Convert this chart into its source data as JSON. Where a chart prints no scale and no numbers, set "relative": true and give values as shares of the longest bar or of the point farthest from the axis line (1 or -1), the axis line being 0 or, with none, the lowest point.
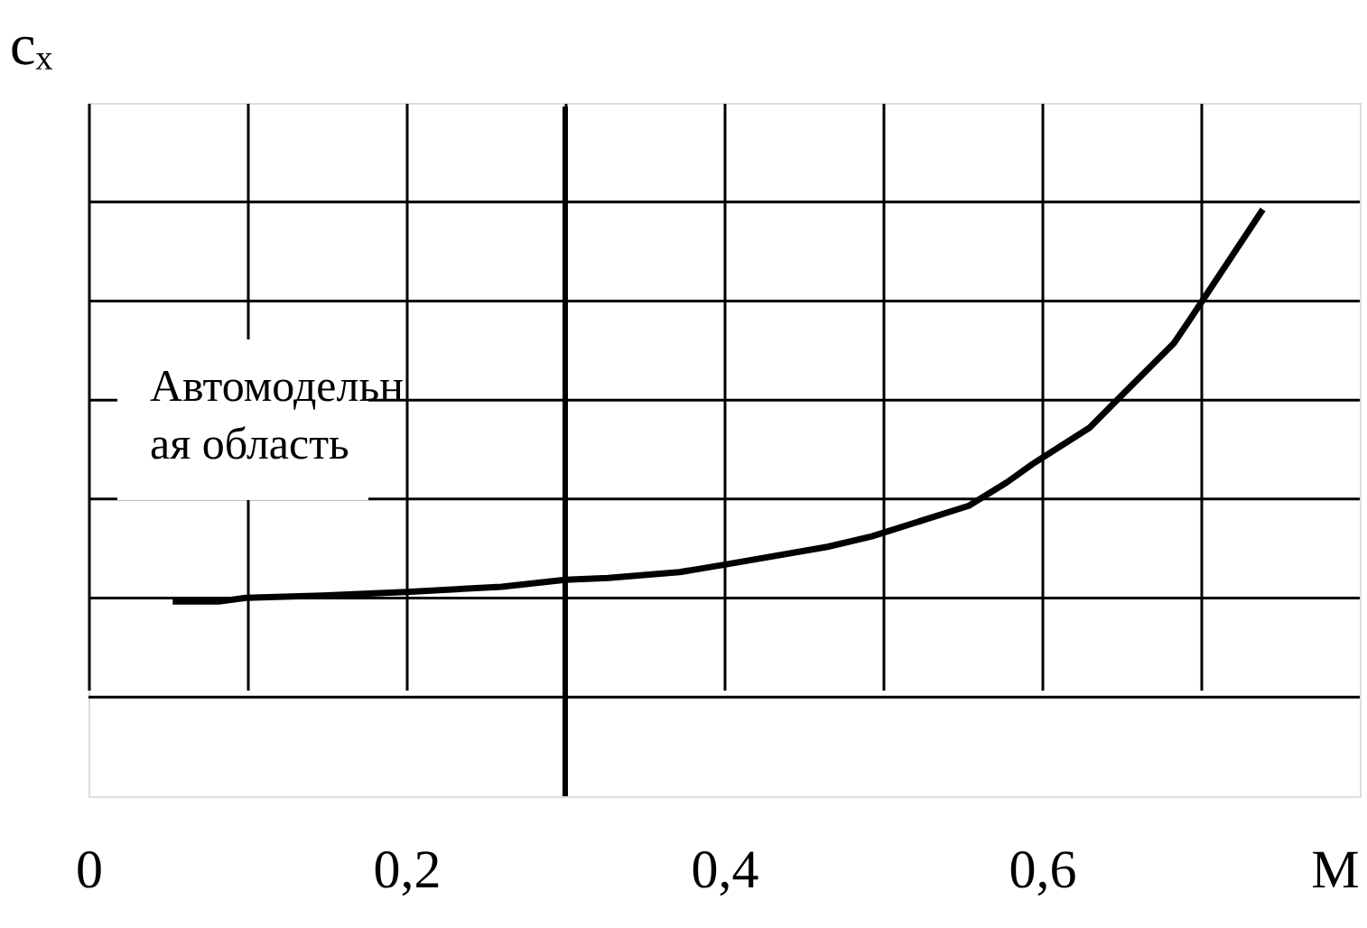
{
  "chart_data": {
    "type": "line",
    "relative": true,
    "xlabel": "M",
    "ylabel": "cₓ",
    "xlim": [
      0,
      0.8
    ],
    "xticks": [
      0,
      {
        "value": 0.1,
        "label": null
      },
      {
        "value": 0.2,
        "label": "0,2"
      },
      {
        "value": 0.3,
        "label": null
      },
      {
        "value": 0.4,
        "label": "0,4"
      },
      {
        "value": 0.5,
        "label": null
      },
      {
        "value": 0.6,
        "label": "0,6"
      },
      {
        "value": 0.7,
        "label": null
      }
    ],
    "x": [
      0.053,
      0.082,
      0.099,
      0.147,
      0.2,
      0.26,
      0.3,
      0.327,
      0.372,
      0.399,
      0.465,
      0.493,
      0.554,
      0.578,
      0.594,
      0.63,
      0.649,
      0.683,
      0.693,
      0.706,
      0.739
    ],
    "series": [
      {
        "color": "#000000",
        "values": [
          0.332,
          0.332,
          0.338,
          0.342,
          0.348,
          0.357,
          0.369,
          0.372,
          0.382,
          0.394,
          0.425,
          0.443,
          0.495,
          0.535,
          0.566,
          0.628,
          0.68,
          0.772,
          0.812,
          0.865,
          1.0
        ]
      }
    ],
    "ref_lines": [
      {
        "axis": "x",
        "value": 0.3,
        "color": "#000000"
      }
    ],
    "annotations": [
      "Автомодельн\nая область"
    ],
    "grid": true,
    "marker": "none",
    "line_style": "solid"
  }
}
